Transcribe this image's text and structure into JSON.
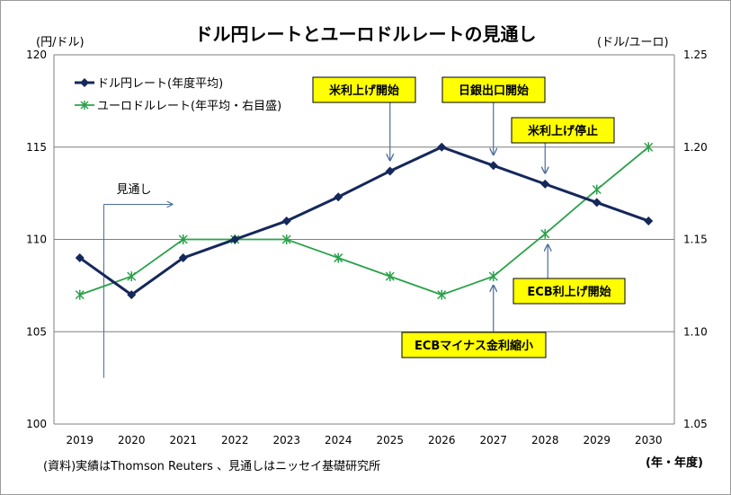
{
  "title": "ドル円レートとユーロドルレートの見通し",
  "left_unit": "(円/ドル)",
  "right_unit": "(ドル/ユーロ)",
  "x_unit": "(年・年度)",
  "source": "(資料)実績はThomson Reuters 、見通しはニッセイ基礎研究所",
  "forecast_label": "見通し",
  "annotations": [
    {
      "id": "fed-hike",
      "text": "米利上げ開始",
      "year": 2025,
      "series": 0
    },
    {
      "id": "boj-exit",
      "text": "日銀出口開始",
      "year": 2027,
      "series": 0
    },
    {
      "id": "fed-stop",
      "text": "米利上げ停止",
      "year": 2028,
      "series": 0
    },
    {
      "id": "ecb-hike",
      "text": "ECB利上げ開始",
      "year": 2028,
      "series": 1
    },
    {
      "id": "ecb-taper",
      "text": "ECBマイナス金利縮小",
      "year": 2027,
      "series": 1
    }
  ],
  "colors": {
    "usd_jpy": "#14285a",
    "eur_usd": "#2aa24a",
    "callout_fill": "#ffff00",
    "arrow": "#4a6e9a",
    "grid": "#7f7f7f"
  },
  "chart_data": {
    "type": "line",
    "x": [
      2019,
      2020,
      2021,
      2022,
      2023,
      2024,
      2025,
      2026,
      2027,
      2028,
      2029,
      2030
    ],
    "x_tick_labels": [
      "2019",
      "2020",
      "2021",
      "2022",
      "2023",
      "2024",
      "2025",
      "2026",
      "2027",
      "2028",
      "2029",
      "2030"
    ],
    "forecast_start": 2019.5,
    "y_left": {
      "min": 100,
      "max": 120,
      "step": 5,
      "tick_labels": [
        "100",
        "105",
        "110",
        "115",
        "120"
      ]
    },
    "y_right": {
      "min": 1.05,
      "max": 1.25,
      "step": 0.05,
      "tick_labels": [
        "1.05",
        "1.10",
        "1.15",
        "1.20",
        "1.25"
      ]
    },
    "grid": "horizontal",
    "legend_position": "top-left",
    "series": [
      {
        "name": "ドル円レート(年度平均)",
        "axis": "left",
        "marker": "diamond",
        "values": [
          109,
          107,
          109,
          110,
          111,
          112.3,
          113.7,
          115,
          114,
          113,
          112,
          111
        ]
      },
      {
        "name": "ユーロドルレート(年平均・右目盛)",
        "axis": "right",
        "marker": "asterisk",
        "values": [
          1.12,
          1.13,
          1.15,
          1.15,
          1.15,
          1.14,
          1.13,
          1.12,
          1.13,
          1.153,
          1.177,
          1.2
        ]
      }
    ]
  }
}
